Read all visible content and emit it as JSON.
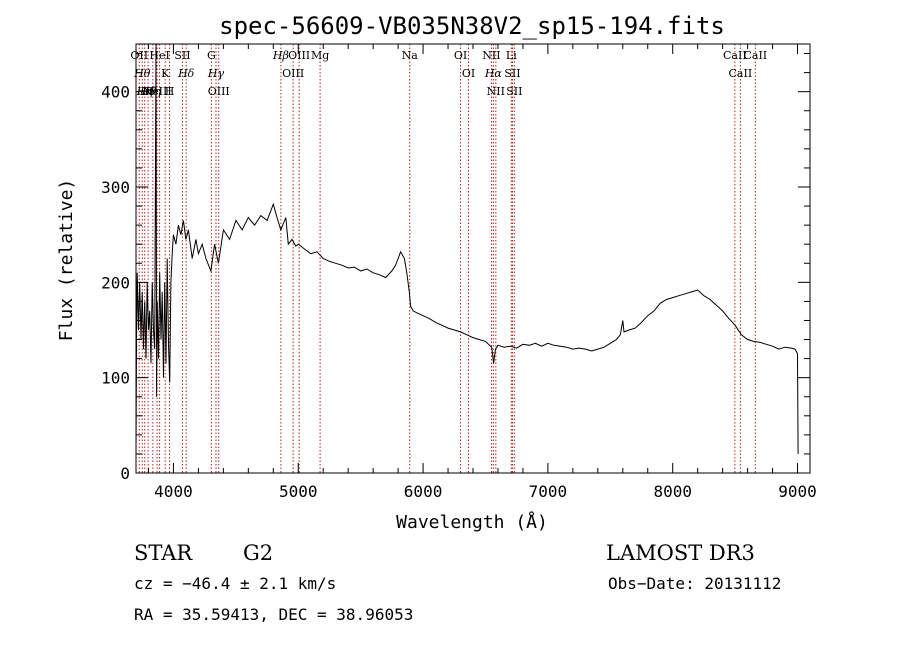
{
  "chart_data": {
    "type": "line",
    "title": "spec-56609-VB035N38V2_sp15-194.fits",
    "xlabel": "Wavelength (Å)",
    "ylabel": "Flux (relative)",
    "xlim": [
      3700,
      9100
    ],
    "ylim": [
      0,
      450
    ],
    "x_ticks": [
      4000,
      5000,
      6000,
      7000,
      8000,
      9000
    ],
    "y_ticks": [
      0,
      100,
      200,
      300,
      400
    ],
    "series": [
      {
        "color": "#000000",
        "points": [
          [
            3700,
            20
          ],
          [
            3705,
            150
          ],
          [
            3710,
            210
          ],
          [
            3720,
            150
          ],
          [
            3730,
            200
          ],
          [
            3740,
            140
          ],
          [
            3750,
            190
          ],
          [
            3760,
            130
          ],
          [
            3770,
            180
          ],
          [
            3780,
            120
          ],
          [
            3790,
            200
          ],
          [
            3800,
            150
          ],
          [
            3810,
            170
          ],
          [
            3820,
            115
          ],
          [
            3830,
            200
          ],
          [
            3840,
            150
          ],
          [
            3850,
            130
          ],
          [
            3860,
            450
          ],
          [
            3865,
            80
          ],
          [
            3870,
            180
          ],
          [
            3880,
            120
          ],
          [
            3890,
            210
          ],
          [
            3900,
            140
          ],
          [
            3910,
            190
          ],
          [
            3920,
            100
          ],
          [
            3930,
            200
          ],
          [
            3940,
            115
          ],
          [
            3950,
            225
          ],
          [
            3960,
            135
          ],
          [
            3970,
            95
          ],
          [
            3980,
            200
          ],
          [
            3990,
            230
          ],
          [
            4000,
            250
          ],
          [
            4020,
            240
          ],
          [
            4040,
            260
          ],
          [
            4060,
            250
          ],
          [
            4080,
            265
          ],
          [
            4100,
            245
          ],
          [
            4120,
            255
          ],
          [
            4150,
            225
          ],
          [
            4180,
            245
          ],
          [
            4200,
            230
          ],
          [
            4230,
            240
          ],
          [
            4260,
            225
          ],
          [
            4300,
            212
          ],
          [
            4330,
            240
          ],
          [
            4360,
            220
          ],
          [
            4400,
            255
          ],
          [
            4450,
            245
          ],
          [
            4500,
            265
          ],
          [
            4550,
            255
          ],
          [
            4600,
            268
          ],
          [
            4650,
            260
          ],
          [
            4700,
            270
          ],
          [
            4750,
            265
          ],
          [
            4800,
            282
          ],
          [
            4830,
            268
          ],
          [
            4860,
            255
          ],
          [
            4900,
            268
          ],
          [
            4920,
            240
          ],
          [
            4950,
            245
          ],
          [
            4980,
            238
          ],
          [
            5000,
            240
          ],
          [
            5050,
            235
          ],
          [
            5100,
            230
          ],
          [
            5150,
            232
          ],
          [
            5200,
            225
          ],
          [
            5250,
            222
          ],
          [
            5300,
            220
          ],
          [
            5350,
            218
          ],
          [
            5400,
            215
          ],
          [
            5450,
            216
          ],
          [
            5500,
            212
          ],
          [
            5550,
            214
          ],
          [
            5600,
            210
          ],
          [
            5650,
            208
          ],
          [
            5700,
            205
          ],
          [
            5750,
            212
          ],
          [
            5780,
            218
          ],
          [
            5800,
            225
          ],
          [
            5820,
            232
          ],
          [
            5850,
            225
          ],
          [
            5870,
            210
          ],
          [
            5890,
            190
          ],
          [
            5900,
            175
          ],
          [
            5920,
            170
          ],
          [
            5950,
            168
          ],
          [
            6000,
            165
          ],
          [
            6050,
            162
          ],
          [
            6100,
            158
          ],
          [
            6150,
            155
          ],
          [
            6200,
            152
          ],
          [
            6250,
            150
          ],
          [
            6300,
            148
          ],
          [
            6350,
            145
          ],
          [
            6400,
            142
          ],
          [
            6450,
            140
          ],
          [
            6500,
            138
          ],
          [
            6550,
            132
          ],
          [
            6565,
            115
          ],
          [
            6580,
            130
          ],
          [
            6600,
            134
          ],
          [
            6650,
            132
          ],
          [
            6700,
            133
          ],
          [
            6750,
            131
          ],
          [
            6800,
            135
          ],
          [
            6850,
            134
          ],
          [
            6900,
            136
          ],
          [
            6950,
            133
          ],
          [
            7000,
            136
          ],
          [
            7050,
            134
          ],
          [
            7100,
            133
          ],
          [
            7150,
            132
          ],
          [
            7200,
            130
          ],
          [
            7250,
            131
          ],
          [
            7300,
            130
          ],
          [
            7350,
            128
          ],
          [
            7400,
            130
          ],
          [
            7450,
            132
          ],
          [
            7500,
            136
          ],
          [
            7550,
            140
          ],
          [
            7580,
            145
          ],
          [
            7600,
            160
          ],
          [
            7610,
            148
          ],
          [
            7650,
            150
          ],
          [
            7700,
            152
          ],
          [
            7750,
            158
          ],
          [
            7800,
            165
          ],
          [
            7850,
            170
          ],
          [
            7900,
            178
          ],
          [
            7950,
            182
          ],
          [
            8000,
            184
          ],
          [
            8050,
            186
          ],
          [
            8100,
            188
          ],
          [
            8150,
            190
          ],
          [
            8200,
            192
          ],
          [
            8250,
            186
          ],
          [
            8300,
            182
          ],
          [
            8350,
            176
          ],
          [
            8400,
            170
          ],
          [
            8450,
            162
          ],
          [
            8500,
            155
          ],
          [
            8550,
            145
          ],
          [
            8600,
            140
          ],
          [
            8650,
            138
          ],
          [
            8700,
            137
          ],
          [
            8750,
            135
          ],
          [
            8800,
            133
          ],
          [
            8850,
            130
          ],
          [
            8900,
            132
          ],
          [
            8950,
            131
          ],
          [
            8980,
            130
          ],
          [
            9000,
            125
          ],
          [
            9005,
            20
          ]
        ]
      }
    ],
    "lines": [
      {
        "x": 3726,
        "label": "OII"
      },
      {
        "x": 3750,
        "label": "Hθ"
      },
      {
        "x": 3770,
        "label": "Hη"
      },
      {
        "x": 3797,
        "label": "Hθ"
      },
      {
        "x": 3835,
        "label": "Hη"
      },
      {
        "x": 3869,
        "label": "NeIII"
      },
      {
        "x": 3889,
        "label": "HeI"
      },
      {
        "x": 3934,
        "label": "K"
      },
      {
        "x": 3969,
        "label": "H"
      },
      {
        "x": 4072,
        "label": "SII"
      },
      {
        "x": 4102,
        "label": "Hδ"
      },
      {
        "x": 4304,
        "label": "G"
      },
      {
        "x": 4341,
        "label": "Hγ"
      },
      {
        "x": 4363,
        "label": "OIII"
      },
      {
        "x": 4861,
        "label": "Hβ"
      },
      {
        "x": 4959,
        "label": "OIII"
      },
      {
        "x": 5007,
        "label": "OIII"
      },
      {
        "x": 5175,
        "label": "Mg"
      },
      {
        "x": 5893,
        "label": "Na"
      },
      {
        "x": 6300,
        "label": "OI"
      },
      {
        "x": 6364,
        "label": "OI"
      },
      {
        "x": 6548,
        "label": "NII"
      },
      {
        "x": 6563,
        "label": "Hα"
      },
      {
        "x": 6583,
        "label": "NII"
      },
      {
        "x": 6707,
        "label": "Li"
      },
      {
        "x": 6716,
        "label": "SII"
      },
      {
        "x": 6731,
        "label": "SII"
      },
      {
        "x": 8498,
        "label": "CaII"
      },
      {
        "x": 8542,
        "label": "CaII"
      },
      {
        "x": 8662,
        "label": "CaII"
      }
    ],
    "line_color": "#b22222",
    "grid": false
  },
  "info": {
    "object_class": "STAR",
    "subclass": "G2",
    "survey": "LAMOST DR3",
    "redshift": "cz = −46.4 ± 2.1 km/s",
    "obs_date": "Obs−Date: 20131112",
    "coords": "RA =  35.59413, DEC =  38.96053"
  }
}
